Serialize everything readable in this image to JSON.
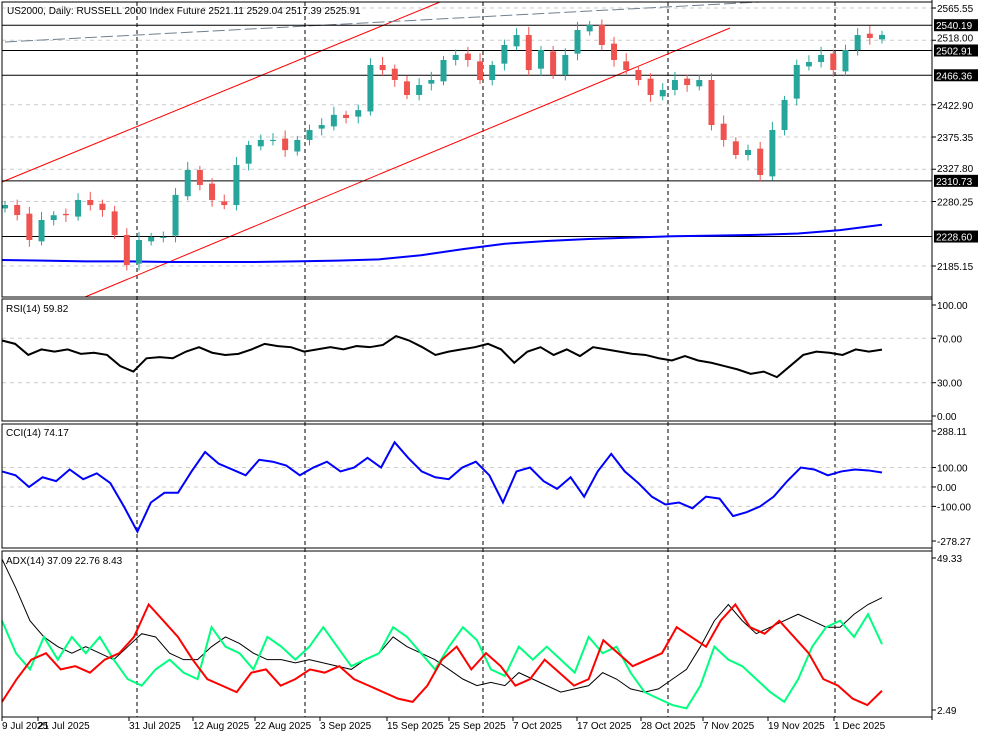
{
  "header": {
    "symbol": "US2000, Daily:",
    "instrument": "RUSSELL 2000 Index Future",
    "ohlc": "2521.11 2529.04 2517.39 2525.91"
  },
  "colors": {
    "bull": "#26a69a",
    "bear": "#ef5350",
    "ma": "#0000ff",
    "channel": "#ff0000",
    "rsi": "#000000",
    "cci": "#0000ff",
    "adx": "#000000",
    "plus_di": "#00ff7f",
    "minus_di": "#ff0000"
  },
  "chart_data": [
    {
      "type": "candlestick",
      "title": "US2000 Daily",
      "ylim": [
        2150,
        2575
      ],
      "y_ticks": [
        "2565.55",
        "2518.00",
        "2422.90",
        "2375.35",
        "2327.80",
        "2280.25",
        "2185.15"
      ],
      "y_tick_values": [
        2565.55,
        2518.0,
        2422.9,
        2375.35,
        2327.8,
        2280.25,
        2185.15
      ],
      "levels": [
        {
          "label": "2540.19",
          "value": 2540.19
        },
        {
          "label": "2502.91",
          "value": 2502.91
        },
        {
          "label": "2466.36",
          "value": 2466.36
        },
        {
          "label": "2310.73",
          "value": 2310.73
        },
        {
          "label": "2228.60",
          "value": 2228.6
        }
      ],
      "closes": [
        2275.1,
        2260.3,
        2223.5,
        2253,
        2260,
        2260,
        2282.5,
        2275,
        2267.7,
        2230.9,
        2186.6,
        2223.5,
        2228,
        2228,
        2290,
        2326.7,
        2304.6,
        2282.5,
        2275,
        2334,
        2363.6,
        2371,
        2371,
        2356,
        2371,
        2385.7,
        2393,
        2408,
        2403.4,
        2415,
        2481.5,
        2474.1,
        2459.4,
        2437.3,
        2452,
        2459.4,
        2488.9,
        2496.3,
        2488.9,
        2459.4,
        2481.5,
        2511,
        2525.7,
        2474.1,
        2503.6,
        2466.8,
        2496.3,
        2533.1,
        2540.5,
        2511,
        2488.9,
        2474.1,
        2459.4,
        2437.3,
        2444.7,
        2459.4,
        2452,
        2459.4,
        2393,
        2371,
        2348.8,
        2356.2,
        2319.3,
        2385.7,
        2430,
        2481.5,
        2485.9,
        2496.3,
        2474.1,
        2503.6,
        2525.7,
        2521.3,
        2525.9
      ],
      "ma_values": [
        2194,
        2193,
        2192,
        2192,
        2191,
        2191,
        2191,
        2192,
        2193,
        2195,
        2201,
        2210,
        2218,
        2222,
        2225,
        2227,
        2229,
        2230,
        2231,
        2233,
        2238,
        2246
      ],
      "x_labels": [
        "9 Jul 2025",
        "21 Jul 2025",
        "31 Jul 2025",
        "12 Aug 2025",
        "22 Aug 2025",
        "3 Sep 2025",
        "15 Sep 2025",
        "25 Sep 2025",
        "7 Oct 2025",
        "17 Oct 2025",
        "28 Oct 2025",
        "7 Nov 2025",
        "19 Nov 2025",
        "1 Dec 2025"
      ]
    },
    {
      "type": "line",
      "title": "RSI(14) 59.82",
      "ylim": [
        0,
        100
      ],
      "y_ticks": [
        "100.00",
        "70.00",
        "30.00",
        "0.00"
      ],
      "y_tick_values": [
        100,
        70,
        30,
        0
      ],
      "values": [
        68,
        65,
        55,
        60,
        58,
        60,
        56,
        57,
        55,
        45,
        40,
        52,
        53,
        52,
        58,
        62,
        57,
        55,
        56,
        60,
        65,
        63,
        62,
        58,
        60,
        62,
        60,
        63,
        62,
        64,
        72,
        68,
        62,
        55,
        58,
        60,
        62,
        65,
        60,
        48,
        58,
        62,
        55,
        60,
        54,
        62,
        60,
        58,
        56,
        55,
        52,
        50,
        54,
        50,
        48,
        45,
        42,
        38,
        40,
        35,
        45,
        55,
        58,
        57,
        55,
        60,
        58,
        59.82
      ]
    },
    {
      "type": "line",
      "title": "CCI(14) 74.17",
      "ylim": [
        -278.27,
        288.11
      ],
      "y_ticks": [
        "288.11",
        "100.00",
        "0.00",
        "-100.00",
        "-278.27"
      ],
      "y_tick_values": [
        288.11,
        100,
        0,
        -100,
        -278.27
      ],
      "values": [
        80,
        60,
        0,
        50,
        30,
        90,
        40,
        70,
        20,
        -100,
        -230,
        -80,
        -30,
        -30,
        80,
        180,
        120,
        90,
        60,
        140,
        130,
        110,
        60,
        100,
        130,
        80,
        100,
        150,
        100,
        230,
        150,
        80,
        50,
        40,
        100,
        130,
        60,
        -80,
        80,
        100,
        30,
        -10,
        50,
        -50,
        80,
        170,
        80,
        20,
        -50,
        -90,
        -80,
        -110,
        -50,
        -60,
        -150,
        -130,
        -100,
        -50,
        30,
        100,
        90,
        60,
        80,
        90,
        85,
        74.17
      ]
    },
    {
      "type": "line",
      "title": "ADX(14) 37.09 22.76 8.43",
      "ylim": [
        2.49,
        49.33
      ],
      "y_ticks": [
        "49.33",
        "2.49"
      ],
      "y_tick_values": [
        49.33,
        2.49
      ],
      "series": [
        {
          "name": "ADX",
          "values": [
            49,
            40,
            30,
            25,
            22,
            20,
            22,
            20,
            18,
            22,
            26,
            25,
            20,
            18,
            18,
            22,
            25,
            23,
            20,
            18,
            18,
            17,
            18,
            17,
            16,
            15,
            18,
            20,
            25,
            22,
            20,
            18,
            15,
            12,
            10,
            11,
            10,
            14,
            12,
            10,
            8,
            9,
            10,
            14,
            12,
            9,
            8,
            9,
            12,
            15,
            22,
            30,
            35,
            30,
            26,
            28,
            30,
            32,
            30,
            28,
            28,
            32,
            35,
            37.09
          ]
        },
        {
          "name": "+DI",
          "values": [
            30,
            20,
            15,
            25,
            18,
            25,
            20,
            25,
            18,
            12,
            10,
            15,
            18,
            14,
            12,
            28,
            22,
            20,
            15,
            25,
            22,
            18,
            22,
            28,
            22,
            16,
            18,
            20,
            28,
            25,
            20,
            15,
            22,
            28,
            24,
            15,
            13,
            22,
            18,
            22,
            18,
            14,
            25,
            20,
            22,
            14,
            8,
            6,
            4,
            3,
            10,
            22,
            18,
            16,
            12,
            8,
            5,
            12,
            22,
            28,
            30,
            25,
            32,
            22.76
          ]
        },
        {
          "name": "-DI",
          "values": [
            5,
            12,
            18,
            20,
            15,
            16,
            14,
            18,
            20,
            25,
            35,
            30,
            25,
            18,
            12,
            10,
            8,
            14,
            15,
            10,
            12,
            15,
            14,
            16,
            12,
            10,
            8,
            6,
            5,
            10,
            18,
            22,
            15,
            20,
            16,
            10,
            12,
            18,
            14,
            10,
            12,
            24,
            20,
            16,
            18,
            20,
            28,
            25,
            22,
            30,
            35,
            28,
            26,
            30,
            25,
            20,
            12,
            10,
            6,
            4,
            8.43
          ]
        }
      ]
    }
  ]
}
